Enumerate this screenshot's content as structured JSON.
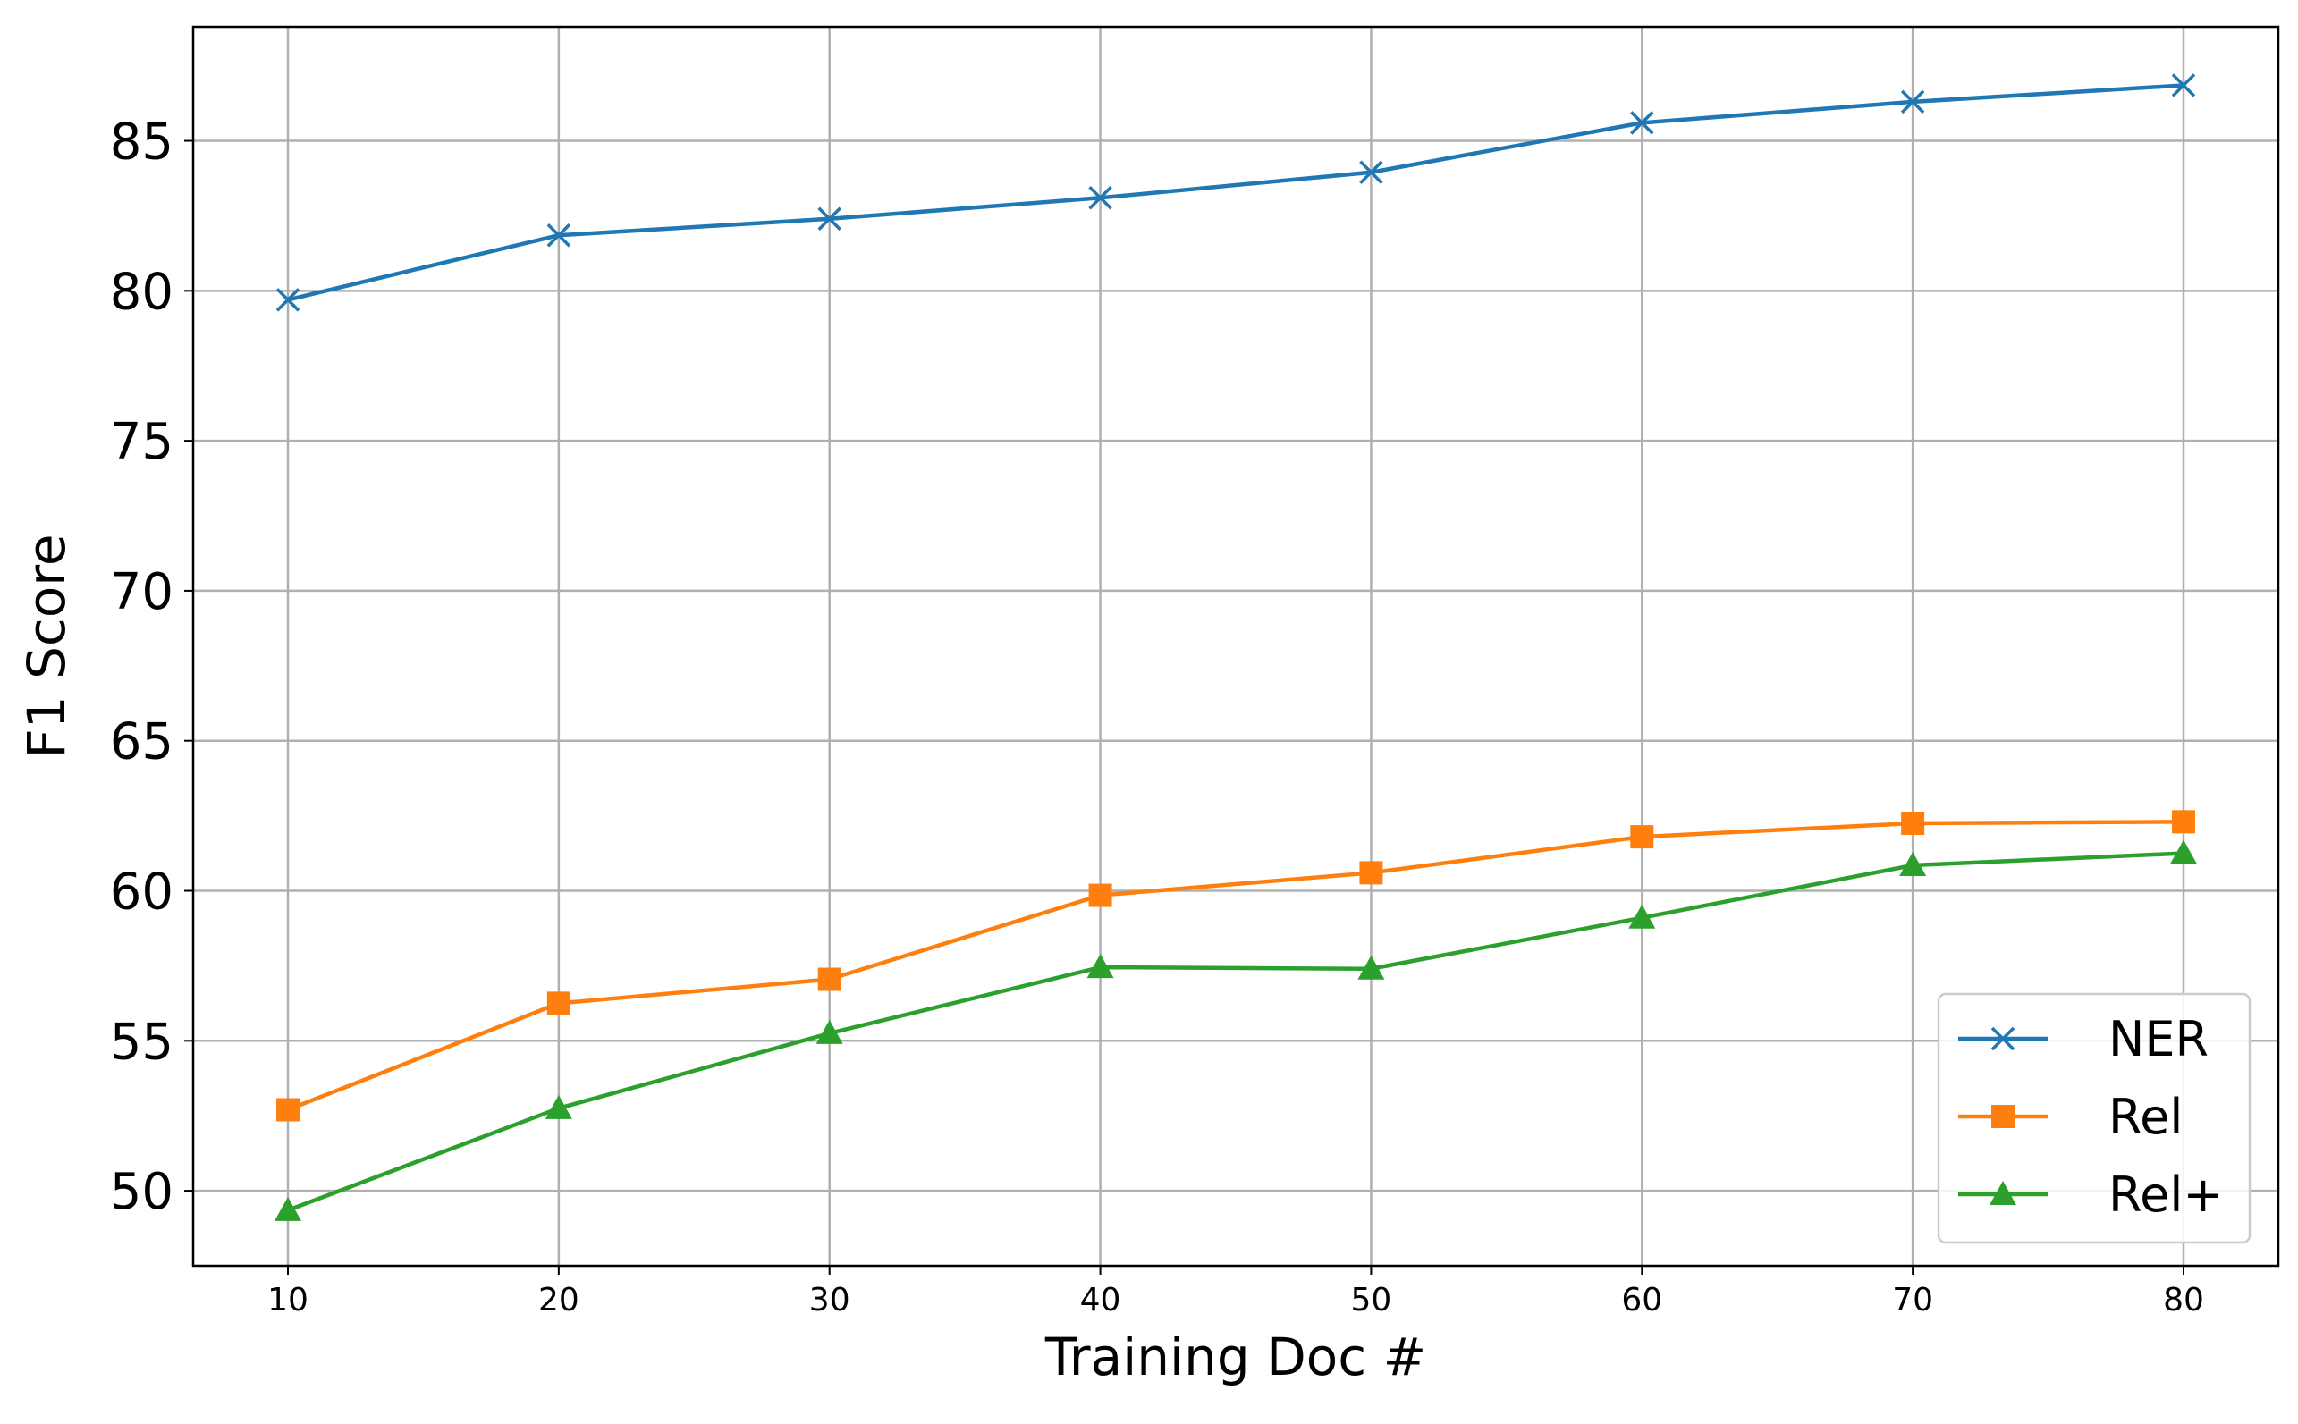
{
  "chart_data": {
    "type": "line",
    "x": [
      10,
      20,
      30,
      40,
      50,
      60,
      70,
      80
    ],
    "xticks": [
      "10",
      "20",
      "30",
      "40",
      "50",
      "60",
      "70",
      "80"
    ],
    "yticks": [
      "50",
      "55",
      "60",
      "65",
      "70",
      "75",
      "80",
      "85"
    ],
    "xlabel": "Training Doc #",
    "ylabel": "F1 Score",
    "xlim": [
      6.5,
      83.5
    ],
    "ylim": [
      47.5,
      88.8
    ],
    "grid": true,
    "legend_position": "lower-right",
    "series": [
      {
        "name": "NER",
        "color": "#1f77b4",
        "marker": "x-icon",
        "values": [
          79.7,
          81.85,
          82.4,
          83.1,
          83.95,
          85.6,
          86.3,
          86.85
        ]
      },
      {
        "name": "Rel",
        "color": "#ff7f0e",
        "marker": "square-icon",
        "values": [
          52.7,
          56.25,
          57.05,
          59.85,
          60.6,
          61.8,
          62.25,
          62.3
        ]
      },
      {
        "name": "Rel+",
        "color": "#2ca02c",
        "marker": "triangle-icon",
        "values": [
          49.35,
          52.75,
          55.25,
          57.45,
          57.4,
          59.1,
          60.85,
          61.25
        ]
      }
    ]
  }
}
